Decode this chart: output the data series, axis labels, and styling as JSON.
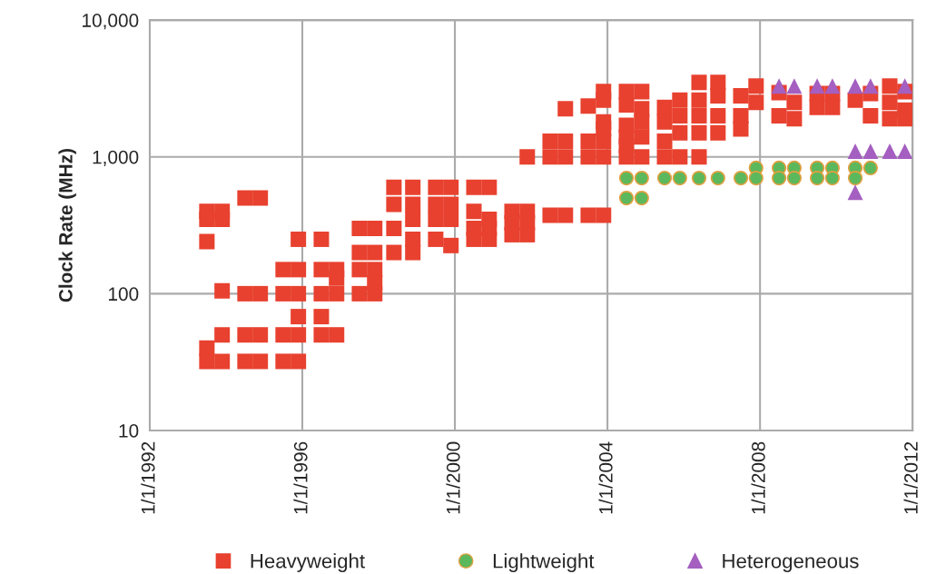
{
  "chart_data": {
    "type": "scatter",
    "ylabel": "Clock Rate (MHz)",
    "log": "y",
    "xlim": [
      "1992-01-01",
      "2012-01-01"
    ],
    "xticks": [
      {
        "value": "1992-01-01",
        "label": "1/1/1992"
      },
      {
        "value": "1996-01-01",
        "label": "1/1/1996"
      },
      {
        "value": "2000-01-01",
        "label": "1/1/2000"
      },
      {
        "value": "2004-01-01",
        "label": "1/1/2004"
      },
      {
        "value": "2008-01-01",
        "label": "1/1/2008"
      },
      {
        "value": "2012-01-01",
        "label": "1/1/2012"
      }
    ],
    "ylim": [
      10,
      10000
    ],
    "yticks": [
      10,
      100,
      {
        "value": 1000,
        "label": "1,000"
      },
      {
        "value": 10000,
        "label": "10,000"
      }
    ],
    "grid": true,
    "legend": "bottom",
    "series": [
      {
        "name": "Heavyweight",
        "color": "#e8412f",
        "marker": "square",
        "x": [
          "1993-07-01",
          "1993-07-01",
          "1993-07-01",
          "1993-07-01",
          "1993-07-01",
          "1993-11-24",
          "1993-11-24",
          "1993-11-24",
          "1993-11-24",
          "1993-11-24",
          "1994-07-01",
          "1994-07-01",
          "1994-07-01",
          "1994-07-01",
          "1994-11-24",
          "1994-11-24",
          "1994-11-24",
          "1994-11-24",
          "1995-07-01",
          "1995-07-01",
          "1995-07-01",
          "1995-07-01",
          "1995-11-24",
          "1995-11-24",
          "1995-11-24",
          "1995-11-24",
          "1995-11-24",
          "1995-11-24",
          "1996-07-01",
          "1996-07-01",
          "1996-07-01",
          "1996-07-01",
          "1996-07-01",
          "1996-11-24",
          "1996-11-24",
          "1996-11-24",
          "1996-11-24",
          "1997-07-01",
          "1997-07-01",
          "1997-07-01",
          "1997-07-01",
          "1997-11-24",
          "1997-11-24",
          "1997-11-24",
          "1997-11-24",
          "1997-11-24",
          "1998-05-27",
          "1998-05-27",
          "1998-05-27",
          "1998-05-27",
          "1998-11-24",
          "1998-11-24",
          "1998-11-24",
          "1998-11-24",
          "1998-11-24",
          "1999-07-01",
          "1999-07-01",
          "1999-07-01",
          "1999-07-01",
          "1999-11-24",
          "1999-11-24",
          "1999-11-24",
          "1999-11-24",
          "2000-07-01",
          "2000-07-01",
          "2000-07-01",
          "2000-07-01",
          "2000-11-24",
          "2000-11-24",
          "2000-11-24",
          "2000-11-24",
          "2001-07-01",
          "2001-07-01",
          "2001-07-01",
          "2001-11-24",
          "2001-11-24",
          "2001-11-24",
          "2001-11-24",
          "2002-07-01",
          "2002-07-01",
          "2002-07-01",
          "2002-11-24",
          "2002-11-24",
          "2002-11-24",
          "2002-11-24",
          "2003-07-01",
          "2003-07-01",
          "2003-07-01",
          "2003-07-01",
          "2003-11-24",
          "2003-11-24",
          "2003-11-24",
          "2003-11-24",
          "2003-11-24",
          "2003-11-24",
          "2003-11-24",
          "2004-07-01",
          "2004-07-01",
          "2004-07-01",
          "2004-07-01",
          "2004-07-01",
          "2004-07-01",
          "2004-11-24",
          "2004-11-24",
          "2004-11-24",
          "2004-11-24",
          "2004-11-24",
          "2005-07-01",
          "2005-07-01",
          "2005-07-01",
          "2005-07-01",
          "2005-11-24",
          "2005-11-24",
          "2005-11-24",
          "2005-11-24",
          "2006-05-27",
          "2006-05-27",
          "2006-05-27",
          "2006-05-27",
          "2006-05-27",
          "2006-11-24",
          "2006-11-24",
          "2006-11-24",
          "2006-11-24",
          "2007-07-01",
          "2007-07-01",
          "2007-07-01",
          "2007-11-24",
          "2007-11-24",
          "2008-07-01",
          "2008-07-01",
          "2008-11-24",
          "2008-11-24",
          "2009-07-01",
          "2009-07-01",
          "2009-11-24",
          "2009-11-24",
          "2010-07-01",
          "2010-11-24",
          "2010-11-24",
          "2011-05-27",
          "2011-05-27",
          "2011-05-27",
          "2011-10-19",
          "2011-10-19",
          "2011-10-19"
        ],
        "values": [
          400,
          350,
          240,
          40,
          32,
          400,
          350,
          105,
          50,
          32,
          500,
          100,
          50,
          32,
          500,
          100,
          50,
          32,
          150,
          100,
          50,
          32,
          250,
          150,
          100,
          68,
          50,
          32,
          250,
          150,
          100,
          68,
          50,
          150,
          130,
          100,
          50,
          300,
          200,
          150,
          100,
          300,
          200,
          150,
          120,
          100,
          600,
          450,
          300,
          200,
          600,
          450,
          350,
          250,
          200,
          600,
          450,
          350,
          250,
          600,
          450,
          350,
          225,
          600,
          400,
          300,
          250,
          600,
          350,
          300,
          250,
          400,
          330,
          270,
          1000,
          400,
          330,
          270,
          1300,
          1000,
          375,
          2250,
          1300,
          1000,
          375,
          2350,
          1300,
          1000,
          375,
          3000,
          2600,
          1800,
          1600,
          1300,
          1000,
          375,
          3000,
          2400,
          1700,
          1400,
          1200,
          1000,
          3000,
          2250,
          1800,
          1400,
          1000,
          2300,
          1800,
          1300,
          1000,
          2600,
          2000,
          1500,
          1000,
          3500,
          2600,
          2000,
          1500,
          1000,
          3500,
          2800,
          2000,
          1500,
          2800,
          2000,
          1600,
          3300,
          2500,
          2950,
          2000,
          2500,
          1900,
          2900,
          2300,
          2900,
          2300,
          2600,
          2900,
          2000,
          3300,
          2500,
          1900,
          3000,
          2200,
          1900
        ]
      },
      {
        "name": "Lightweight",
        "color": "#5cb85c",
        "marker": "circle",
        "x": [
          "2004-07-01",
          "2004-07-01",
          "2004-11-24",
          "2004-11-24",
          "2005-07-01",
          "2005-11-24",
          "2006-05-27",
          "2006-11-24",
          "2007-07-01",
          "2007-11-24",
          "2007-11-24",
          "2008-07-01",
          "2008-07-01",
          "2008-11-24",
          "2008-11-24",
          "2009-07-01",
          "2009-07-01",
          "2009-11-24",
          "2009-11-24",
          "2010-07-01",
          "2010-07-01",
          "2010-11-24"
        ],
        "values": [
          700,
          500,
          700,
          500,
          700,
          700,
          700,
          700,
          700,
          830,
          700,
          830,
          700,
          830,
          700,
          830,
          700,
          830,
          700,
          830,
          700,
          830
        ]
      },
      {
        "name": "Heterogeneous",
        "color": "#a45fc0",
        "marker": "triangle",
        "x": [
          "2008-07-01",
          "2008-11-24",
          "2009-07-01",
          "2009-11-24",
          "2010-07-01",
          "2010-07-01",
          "2010-07-01",
          "2010-11-24",
          "2010-11-24",
          "2011-05-27",
          "2011-10-19",
          "2011-10-19"
        ],
        "values": [
          3300,
          3300,
          3300,
          3300,
          3300,
          1100,
          550,
          3300,
          1100,
          1100,
          3300,
          1100
        ]
      }
    ]
  }
}
